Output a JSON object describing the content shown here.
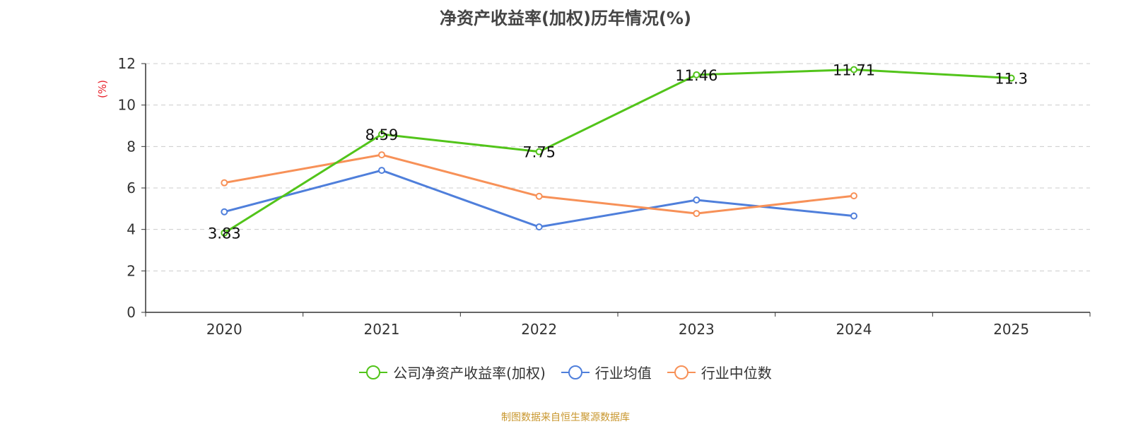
{
  "chart_data": {
    "type": "line",
    "title": "净资产收益率(加权)历年情况(%)",
    "ylabel": "(%)",
    "categories": [
      "2020",
      "2021",
      "2022",
      "2023",
      "2024",
      "2025"
    ],
    "ylim": [
      0,
      12
    ],
    "yticks": [
      0,
      2,
      4,
      6,
      8,
      10,
      12
    ],
    "grid": true,
    "legend_position": "bottom",
    "series": [
      {
        "name": "公司净资产收益率(加权)",
        "color": "#52c41a",
        "values": [
          3.83,
          8.59,
          7.75,
          11.46,
          11.71,
          11.3
        ],
        "show_labels": true
      },
      {
        "name": "行业均值",
        "color": "#4f7fdb",
        "values": [
          4.85,
          6.85,
          4.12,
          5.42,
          4.65,
          null
        ],
        "show_labels": false
      },
      {
        "name": "行业中位数",
        "color": "#f79158",
        "values": [
          6.25,
          7.6,
          5.6,
          4.77,
          5.62,
          null
        ],
        "show_labels": false
      }
    ],
    "data_labels": [
      "3.83",
      "8.59",
      "7.75",
      "11.46",
      "11.71",
      "11.3"
    ]
  },
  "source_note": "制图数据来自恒生聚源数据库"
}
